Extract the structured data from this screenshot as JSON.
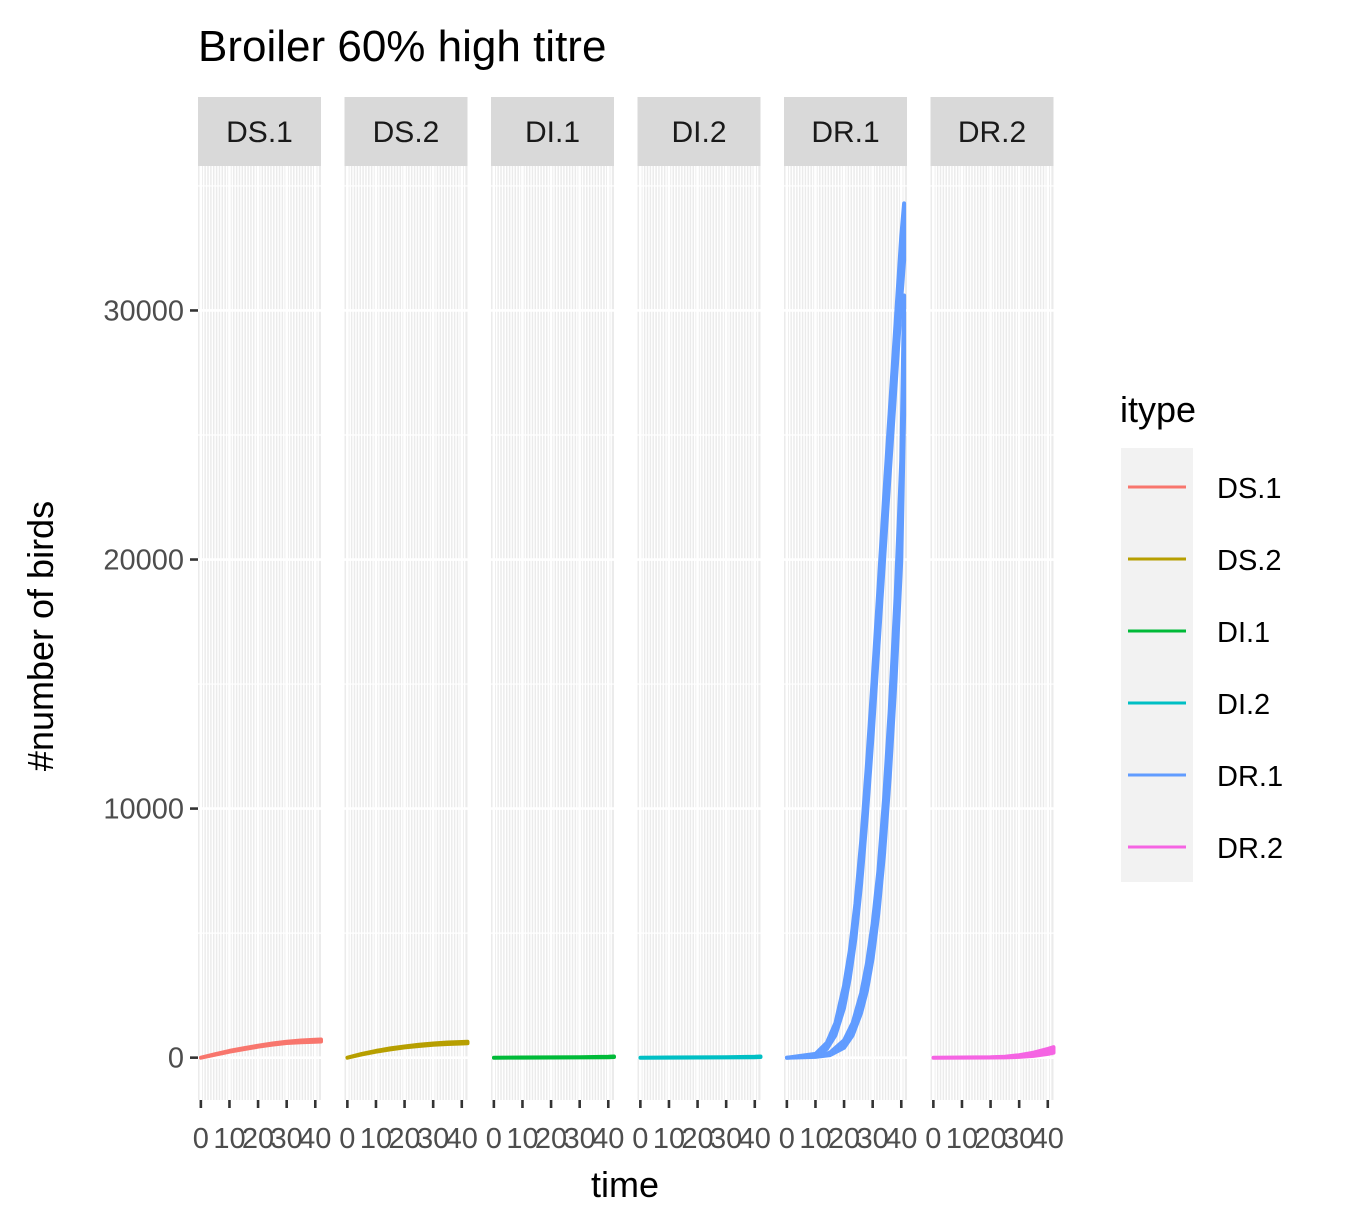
{
  "chart_data": {
    "type": "line",
    "title": "Broiler 60% high titre",
    "xlabel": "time",
    "ylabel": "#number of birds",
    "xlim": [
      -1,
      42
    ],
    "ylim": [
      -1700,
      35800
    ],
    "x_ticks": [
      0,
      10,
      20,
      30,
      40
    ],
    "x_tick_labels": [
      "0",
      "10",
      "20",
      "30",
      "40"
    ],
    "y_ticks": [
      0,
      10000,
      20000,
      30000
    ],
    "y_tick_labels": [
      "0",
      "10000",
      "20000",
      "30000"
    ],
    "grid": true,
    "legend_title": "itype",
    "legend_position": "right",
    "facets": [
      {
        "label": "DS.1",
        "color": "#F8766D",
        "bands": [
          {
            "x": [
              0,
              5,
              10,
              15,
              20,
              25,
              30,
              35,
              40,
              42
            ],
            "low": [
              0,
              120,
              240,
              340,
              440,
              520,
              590,
              620,
              640,
              650
            ],
            "high": [
              0,
              140,
              270,
              380,
              480,
              570,
              640,
              690,
              720,
              730
            ]
          }
        ]
      },
      {
        "label": "DS.2",
        "color": "#B79F00",
        "bands": [
          {
            "x": [
              0,
              5,
              10,
              15,
              20,
              25,
              30,
              35,
              40,
              42
            ],
            "low": [
              0,
              130,
              240,
              330,
              410,
              470,
              520,
              550,
              570,
              575
            ],
            "high": [
              0,
              150,
              270,
              370,
              450,
              520,
              570,
              610,
              630,
              640
            ]
          }
        ]
      },
      {
        "label": "DI.1",
        "color": "#00BA38",
        "bands": [
          {
            "x": [
              0,
              10,
              20,
              30,
              40,
              42
            ],
            "low": [
              0,
              2,
              5,
              10,
              20,
              25
            ],
            "high": [
              0,
              5,
              10,
              20,
              35,
              45
            ]
          }
        ]
      },
      {
        "label": "DI.2",
        "color": "#00BFC4",
        "bands": [
          {
            "x": [
              0,
              10,
              20,
              30,
              40,
              42
            ],
            "low": [
              0,
              2,
              5,
              10,
              20,
              25
            ],
            "high": [
              0,
              5,
              10,
              20,
              35,
              45
            ]
          }
        ]
      },
      {
        "label": "DR.1",
        "color": "#619CFF",
        "bands": [
          {
            "x": [
              0,
              10,
              14,
              17,
              20,
              22,
              24,
              26,
              28,
              30,
              32,
              34,
              36,
              38,
              40,
              41
            ],
            "low": [
              0,
              80,
              350,
              900,
              2000,
              3200,
              4800,
              7000,
              9800,
              13000,
              16500,
              20000,
              23500,
              27000,
              30500,
              32000
            ],
            "high": [
              0,
              150,
              600,
              1400,
              2900,
              4300,
              6200,
              8700,
              11800,
              15200,
              18800,
              22500,
              26000,
              29500,
              33000,
              34300
            ]
          },
          {
            "x": [
              0,
              10,
              15,
              20,
              23,
              26,
              28,
              30,
              32,
              34,
              36,
              38,
              40,
              41
            ],
            "low": [
              0,
              30,
              100,
              400,
              900,
              1800,
              2700,
              4000,
              5800,
              8200,
              11300,
              15200,
              20000,
              25800
            ],
            "high": [
              0,
              60,
              200,
              700,
              1400,
              2600,
              3800,
              5400,
              7500,
              10400,
              14000,
              18500,
              24000,
              30600
            ]
          }
        ]
      },
      {
        "label": "DR.2",
        "color": "#F564E3",
        "bands": [
          {
            "x": [
              0,
              10,
              20,
              25,
              30,
              35,
              40,
              42
            ],
            "low": [
              0,
              2,
              5,
              10,
              30,
              70,
              150,
              200
            ],
            "high": [
              0,
              5,
              15,
              40,
              100,
              200,
              350,
              420
            ]
          }
        ]
      }
    ]
  }
}
